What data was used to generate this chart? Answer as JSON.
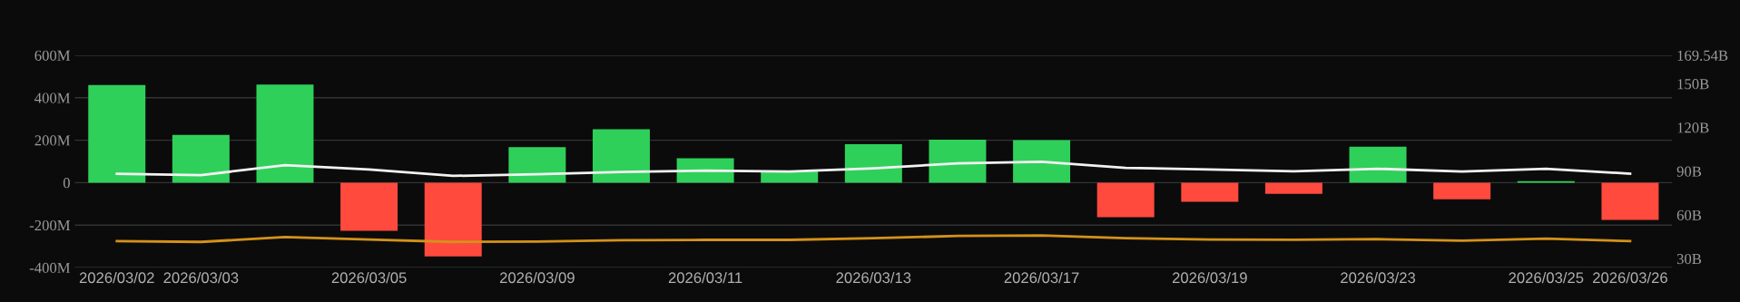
{
  "chart_data": {
    "type": "bar",
    "categories": [
      "2026/03/02",
      "2026/03/03",
      null,
      "2026/03/05",
      null,
      "2026/03/09",
      null,
      "2026/03/11",
      null,
      "2026/03/13",
      null,
      "2026/03/17",
      null,
      "2026/03/19",
      null,
      "2026/03/23",
      null,
      "2026/03/25",
      "2026/03/26"
    ],
    "series": [
      {
        "colors": [
          "#2fd05a",
          "#2fd05a",
          "#2fd05a",
          "#ff4a3d",
          "#ff4a3d",
          "#2fd05a",
          "#2fd05a",
          "#2fd05a",
          "#2fd05a",
          "#2fd05a",
          "#2fd05a",
          "#2fd05a",
          "#ff4a3d",
          "#ff4a3d",
          "#ff4a3d",
          "#2fd05a",
          "#ff4a3d",
          "#2fd05a",
          "#ff4a3d"
        ],
        "values": [
          460,
          225,
          462,
          -227,
          -348,
          167,
          252,
          115,
          54,
          181,
          202,
          200,
          -163,
          -90,
          -53,
          169,
          -78,
          7,
          -176
        ]
      },
      {
        "type": "line",
        "axis": "y2",
        "color": "#f2f2f2",
        "values": [
          88.2,
          87.3,
          94.2,
          91.2,
          86.8,
          87.9,
          89.5,
          90.4,
          89.8,
          92.0,
          95.4,
          96.5,
          92.3,
          91.2,
          90.0,
          91.7,
          89.8,
          91.7,
          88.3
        ]
      },
      {
        "type": "line",
        "axis": "y2",
        "color": "#d4921a",
        "values": [
          42.0,
          41.5,
          44.8,
          43.1,
          41.5,
          41.8,
          42.6,
          42.9,
          42.9,
          44.0,
          45.6,
          45.9,
          44.0,
          43.2,
          43.0,
          43.4,
          42.4,
          43.7,
          42.0
        ]
      }
    ],
    "ylim": [
      -400,
      600
    ],
    "yticks": [
      {
        "value": -400,
        "label": "-400M"
      },
      {
        "value": -200,
        "label": "-200M"
      },
      0,
      {
        "value": 200,
        "label": "200M"
      },
      {
        "value": 400,
        "label": "400M"
      },
      {
        "value": 600,
        "label": "600M"
      }
    ],
    "y2lim": [
      23.9,
      169.54
    ],
    "y2ticks": [
      {
        "value": 30,
        "label": "30B"
      },
      {
        "value": 60,
        "label": "60B"
      },
      {
        "value": 90,
        "label": "90B"
      },
      {
        "value": 120,
        "label": "120B"
      },
      {
        "value": 150,
        "label": "150B"
      },
      {
        "value": 169.54,
        "label": "169.54B"
      }
    ],
    "grid": "y",
    "legend": false,
    "marker": "none",
    "line_style": "solid"
  }
}
